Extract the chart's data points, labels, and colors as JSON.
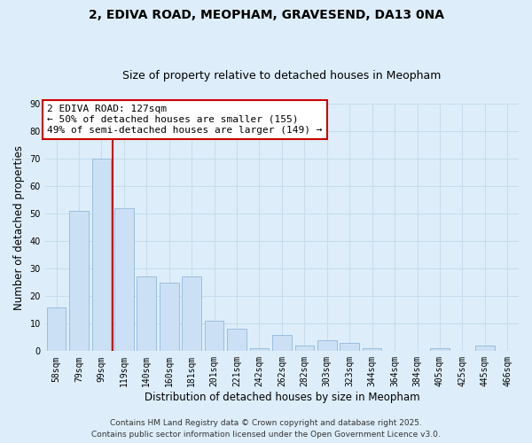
{
  "title": "2, EDIVA ROAD, MEOPHAM, GRAVESEND, DA13 0NA",
  "subtitle": "Size of property relative to detached houses in Meopham",
  "xlabel": "Distribution of detached houses by size in Meopham",
  "ylabel": "Number of detached properties",
  "bar_labels": [
    "58sqm",
    "79sqm",
    "99sqm",
    "119sqm",
    "140sqm",
    "160sqm",
    "181sqm",
    "201sqm",
    "221sqm",
    "242sqm",
    "262sqm",
    "282sqm",
    "303sqm",
    "323sqm",
    "344sqm",
    "364sqm",
    "384sqm",
    "405sqm",
    "425sqm",
    "445sqm",
    "466sqm"
  ],
  "bar_values": [
    16,
    51,
    70,
    52,
    27,
    25,
    27,
    11,
    8,
    1,
    6,
    2,
    4,
    3,
    1,
    0,
    0,
    1,
    0,
    2,
    0
  ],
  "bar_color": "#cce0f5",
  "bar_edge_color": "#9bbedd",
  "vline_index": 3,
  "vline_color": "#cc0000",
  "annotation_line1": "2 EDIVA ROAD: 127sqm",
  "annotation_line2": "← 50% of detached houses are smaller (155)",
  "annotation_line3": "49% of semi-detached houses are larger (149) →",
  "annotation_box_facecolor": "#ffffff",
  "annotation_box_edgecolor": "#cc0000",
  "ylim": [
    0,
    90
  ],
  "yticks": [
    0,
    10,
    20,
    30,
    40,
    50,
    60,
    70,
    80,
    90
  ],
  "grid_color": "#c8dced",
  "background_color": "#ddeefa",
  "plot_bg_color": "#ddeefa",
  "footer_line1": "Contains HM Land Registry data © Crown copyright and database right 2025.",
  "footer_line2": "Contains public sector information licensed under the Open Government Licence v3.0.",
  "title_fontsize": 10,
  "subtitle_fontsize": 9,
  "tick_fontsize": 7,
  "label_fontsize": 8.5,
  "annotation_fontsize": 8,
  "footer_fontsize": 6.5
}
